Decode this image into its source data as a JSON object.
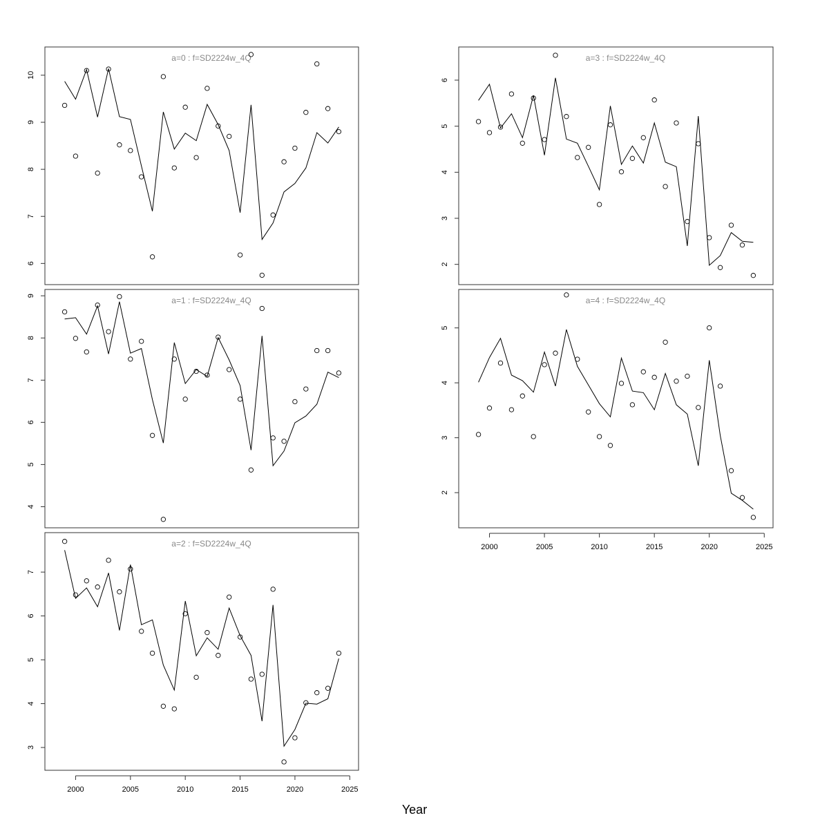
{
  "figure": {
    "xlabel": "Year"
  },
  "chart_data": [
    {
      "type": "line",
      "title": "a=0  :  f=SD2224w_4Q",
      "xlim": [
        1997.2,
        2025.8
      ],
      "ylim": [
        5.55,
        10.6
      ],
      "yticks": [
        6,
        7,
        8,
        9,
        10
      ],
      "xticks": [],
      "series": [
        {
          "kind": "line",
          "x": [
            1999,
            2000,
            2001,
            2002,
            2003,
            2004,
            2005,
            2006,
            2007,
            2008,
            2009,
            2010,
            2011,
            2012,
            2013,
            2014,
            2015,
            2016,
            2017,
            2018,
            2019,
            2020,
            2021,
            2022,
            2023,
            2024
          ],
          "y": [
            9.87,
            9.49,
            10.12,
            9.11,
            10.14,
            9.12,
            9.06,
            8.07,
            7.11,
            9.22,
            8.43,
            8.77,
            8.61,
            9.38,
            8.95,
            8.4,
            7.08,
            9.37,
            6.51,
            6.86,
            7.52,
            7.7,
            8.03,
            8.78,
            8.56,
            8.9
          ]
        },
        {
          "kind": "points",
          "x": [
            1999,
            2000,
            2001,
            2002,
            2003,
            2004,
            2005,
            2006,
            2007,
            2008,
            2009,
            2010,
            2011,
            2012,
            2013,
            2014,
            2015,
            2016,
            2017,
            2018,
            2019,
            2020,
            2021,
            2022,
            2023,
            2024
          ],
          "y": [
            9.36,
            8.28,
            10.1,
            7.92,
            10.13,
            8.52,
            8.4,
            7.84,
            6.14,
            9.97,
            8.03,
            9.32,
            8.25,
            9.72,
            8.92,
            8.7,
            6.18,
            10.44,
            5.75,
            7.03,
            8.16,
            8.45,
            9.21,
            10.24,
            9.29,
            8.8
          ]
        }
      ]
    },
    {
      "type": "line",
      "title": "a=1  :  f=SD2224w_4Q",
      "xlim": [
        1997.2,
        2025.8
      ],
      "ylim": [
        3.5,
        9.15
      ],
      "yticks": [
        4,
        5,
        6,
        7,
        8,
        9
      ],
      "xticks": [],
      "series": [
        {
          "kind": "line",
          "x": [
            1999,
            2000,
            2001,
            2002,
            2003,
            2004,
            2005,
            2006,
            2007,
            2008,
            2009,
            2010,
            2011,
            2012,
            2013,
            2014,
            2015,
            2016,
            2017,
            2018,
            2019,
            2020,
            2021,
            2022,
            2023,
            2024
          ],
          "y": [
            8.45,
            8.48,
            8.09,
            8.76,
            7.62,
            8.86,
            7.64,
            7.75,
            6.54,
            5.51,
            7.89,
            6.92,
            7.25,
            7.09,
            8.01,
            7.48,
            6.87,
            5.34,
            8.05,
            4.97,
            5.32,
            5.99,
            6.15,
            6.43,
            7.19,
            7.06
          ]
        },
        {
          "kind": "points",
          "x": [
            1999,
            2000,
            2001,
            2002,
            2003,
            2004,
            2005,
            2006,
            2007,
            2008,
            2009,
            2010,
            2011,
            2012,
            2013,
            2014,
            2015,
            2016,
            2017,
            2018,
            2019,
            2020,
            2021,
            2022,
            2023,
            2024
          ],
          "y": [
            8.62,
            7.99,
            7.67,
            8.78,
            8.15,
            8.98,
            7.5,
            7.92,
            5.69,
            3.7,
            7.5,
            6.55,
            7.21,
            7.12,
            8.02,
            7.25,
            6.55,
            4.87,
            8.7,
            5.63,
            5.55,
            6.49,
            6.79,
            7.7,
            7.7,
            7.17
          ]
        }
      ]
    },
    {
      "type": "line",
      "title": "a=2  :  f=SD2224w_4Q",
      "xlim": [
        1997.2,
        2025.8
      ],
      "ylim": [
        2.48,
        7.9
      ],
      "yticks": [
        3,
        4,
        5,
        6,
        7
      ],
      "xticks": [
        2000,
        2005,
        2010,
        2015,
        2020,
        2025
      ],
      "series": [
        {
          "kind": "line",
          "x": [
            1999,
            2000,
            2001,
            2002,
            2003,
            2004,
            2005,
            2006,
            2007,
            2008,
            2009,
            2010,
            2011,
            2012,
            2013,
            2014,
            2015,
            2016,
            2017,
            2018,
            2019,
            2020,
            2021,
            2022,
            2023,
            2024
          ],
          "y": [
            7.5,
            6.4,
            6.64,
            6.21,
            6.98,
            5.67,
            7.17,
            5.8,
            5.91,
            4.88,
            4.31,
            6.34,
            5.09,
            5.5,
            5.24,
            6.18,
            5.55,
            5.1,
            3.6,
            6.25,
            3.03,
            3.41,
            4.01,
            3.99,
            4.11,
            5.03
          ]
        },
        {
          "kind": "points",
          "x": [
            1999,
            2000,
            2001,
            2002,
            2003,
            2004,
            2005,
            2006,
            2007,
            2008,
            2009,
            2010,
            2011,
            2012,
            2013,
            2014,
            2015,
            2016,
            2017,
            2018,
            2019,
            2020,
            2021,
            2022,
            2023,
            2024
          ],
          "y": [
            7.7,
            6.48,
            6.8,
            6.66,
            7.27,
            6.55,
            7.07,
            5.65,
            5.15,
            3.94,
            3.88,
            6.05,
            4.6,
            5.62,
            5.1,
            6.43,
            5.52,
            4.56,
            4.67,
            6.61,
            2.67,
            3.22,
            4.02,
            4.25,
            4.35,
            5.15
          ]
        }
      ]
    },
    {
      "type": "line",
      "title": "a=3  :  f=SD2224w_4Q",
      "xlim": [
        1997.2,
        2025.8
      ],
      "ylim": [
        1.56,
        6.72
      ],
      "yticks": [
        2,
        3,
        4,
        5,
        6
      ],
      "xticks": [],
      "series": [
        {
          "kind": "line",
          "x": [
            1999,
            2000,
            2001,
            2002,
            2003,
            2004,
            2005,
            2006,
            2007,
            2008,
            2009,
            2010,
            2011,
            2012,
            2013,
            2014,
            2015,
            2016,
            2017,
            2018,
            2019,
            2020,
            2021,
            2022,
            2023,
            2024
          ],
          "y": [
            5.56,
            5.91,
            4.96,
            5.27,
            4.75,
            5.67,
            4.37,
            6.05,
            4.72,
            4.63,
            4.13,
            3.62,
            5.44,
            4.17,
            4.57,
            4.2,
            5.07,
            4.22,
            4.12,
            2.4,
            5.22,
            1.98,
            2.19,
            2.69,
            2.5,
            2.48
          ]
        },
        {
          "kind": "points",
          "x": [
            1999,
            2000,
            2001,
            2002,
            2003,
            2004,
            2005,
            2006,
            2007,
            2008,
            2009,
            2010,
            2011,
            2012,
            2013,
            2014,
            2015,
            2016,
            2017,
            2018,
            2019,
            2020,
            2021,
            2022,
            2023,
            2024
          ],
          "y": [
            5.1,
            4.86,
            4.98,
            5.7,
            4.63,
            5.61,
            4.71,
            6.54,
            5.21,
            4.32,
            4.54,
            3.3,
            5.03,
            4.01,
            4.3,
            4.75,
            5.57,
            3.69,
            5.07,
            2.93,
            4.62,
            2.58,
            1.93,
            2.85,
            2.42,
            1.76
          ]
        }
      ]
    },
    {
      "type": "line",
      "title": "a=4  :  f=SD2224w_4Q",
      "xlim": [
        1997.2,
        2025.8
      ],
      "ylim": [
        1.36,
        5.7
      ],
      "yticks": [
        2,
        3,
        4,
        5
      ],
      "xticks": [
        2000,
        2005,
        2010,
        2015,
        2020,
        2025
      ],
      "series": [
        {
          "kind": "line",
          "x": [
            1999,
            2000,
            2001,
            2002,
            2003,
            2004,
            2005,
            2006,
            2007,
            2008,
            2009,
            2010,
            2011,
            2012,
            2013,
            2014,
            2015,
            2016,
            2017,
            2018,
            2019,
            2020,
            2021,
            2022,
            2023,
            2024
          ],
          "y": [
            4.01,
            4.46,
            4.81,
            4.14,
            4.04,
            3.83,
            4.56,
            3.94,
            4.97,
            4.3,
            3.96,
            3.62,
            3.38,
            4.45,
            3.85,
            3.82,
            3.51,
            4.17,
            3.6,
            3.43,
            2.49,
            4.41,
            3.04,
            1.99,
            1.86,
            1.7
          ]
        },
        {
          "kind": "points",
          "x": [
            1999,
            2000,
            2001,
            2002,
            2003,
            2004,
            2005,
            2006,
            2007,
            2008,
            2009,
            2010,
            2011,
            2012,
            2013,
            2014,
            2015,
            2016,
            2017,
            2018,
            2019,
            2020,
            2021,
            2022,
            2023,
            2024
          ],
          "y": [
            3.06,
            3.54,
            4.36,
            3.51,
            3.76,
            3.02,
            4.33,
            4.54,
            5.6,
            4.43,
            3.47,
            3.02,
            2.86,
            3.99,
            3.6,
            4.2,
            4.1,
            4.74,
            4.03,
            4.12,
            3.55,
            5.0,
            3.94,
            2.4,
            1.91,
            1.55
          ]
        }
      ]
    }
  ]
}
